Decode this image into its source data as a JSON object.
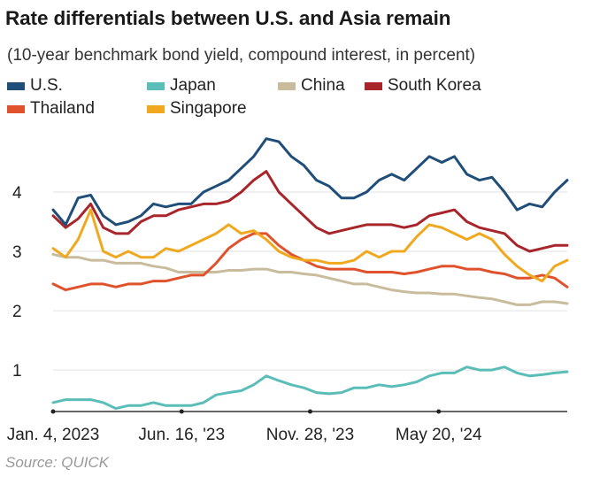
{
  "title": "Rate differentials between U.S. and Asia remain",
  "subtitle": "(10-year benchmark bond yield, compound interest, in percent)",
  "source": "Source: QUICK",
  "colors": {
    "us": "#1f4e79",
    "japan": "#5bbdb8",
    "china": "#c9bc9c",
    "south_korea": "#a8262b",
    "thailand": "#e0522b",
    "singapore": "#f0a81e"
  },
  "chart_data": {
    "type": "line",
    "title": "Rate differentials between U.S. and Asia remain",
    "subtitle": "(10-year benchmark bond yield, compound interest, in percent)",
    "xlabel": "",
    "ylabel": "",
    "x_ticks": [
      "Jan. 4, 2023",
      "Jun. 16, '23",
      "Nov. 28, '23",
      "May 20, '24"
    ],
    "x_tick_positions": [
      0,
      20.5,
      41,
      61.5
    ],
    "x_range": [
      0,
      82
    ],
    "y_ticks": [
      "1",
      "2",
      "3",
      "4"
    ],
    "ylim": [
      0.3,
      5.0
    ],
    "grid": true,
    "legend_position": "top-left",
    "x": [
      0,
      2,
      4,
      6,
      8,
      10,
      12,
      14,
      16,
      18,
      20,
      22,
      24,
      26,
      28,
      30,
      32,
      34,
      36,
      38,
      40,
      42,
      44,
      46,
      48,
      50,
      52,
      54,
      56,
      58,
      60,
      62,
      64,
      66,
      68,
      70,
      72,
      74,
      76,
      78,
      80,
      82
    ],
    "series": [
      {
        "name": "U.S.",
        "values": [
          3.7,
          3.45,
          3.9,
          3.95,
          3.6,
          3.45,
          3.5,
          3.6,
          3.8,
          3.75,
          3.8,
          3.8,
          4.0,
          4.1,
          4.2,
          4.4,
          4.6,
          4.9,
          4.85,
          4.6,
          4.45,
          4.2,
          4.1,
          3.9,
          3.9,
          4.0,
          4.2,
          4.3,
          4.2,
          4.4,
          4.6,
          4.5,
          4.6,
          4.3,
          4.2,
          4.25,
          4.0,
          3.7,
          3.8,
          3.75,
          4.0,
          4.2
        ]
      },
      {
        "name": "Japan",
        "values": [
          0.45,
          0.5,
          0.5,
          0.5,
          0.45,
          0.35,
          0.4,
          0.4,
          0.45,
          0.4,
          0.4,
          0.4,
          0.45,
          0.58,
          0.62,
          0.65,
          0.75,
          0.9,
          0.82,
          0.75,
          0.7,
          0.62,
          0.6,
          0.62,
          0.7,
          0.7,
          0.75,
          0.72,
          0.75,
          0.8,
          0.9,
          0.95,
          0.95,
          1.05,
          1.0,
          1.0,
          1.05,
          0.95,
          0.9,
          0.92,
          0.95,
          0.97
        ]
      },
      {
        "name": "China",
        "values": [
          2.95,
          2.9,
          2.9,
          2.85,
          2.85,
          2.8,
          2.8,
          2.8,
          2.75,
          2.72,
          2.65,
          2.65,
          2.65,
          2.65,
          2.68,
          2.68,
          2.7,
          2.7,
          2.65,
          2.65,
          2.62,
          2.6,
          2.55,
          2.5,
          2.45,
          2.45,
          2.4,
          2.35,
          2.32,
          2.3,
          2.3,
          2.28,
          2.28,
          2.25,
          2.22,
          2.2,
          2.15,
          2.1,
          2.1,
          2.15,
          2.15,
          2.12
        ]
      },
      {
        "name": "South Korea",
        "values": [
          3.6,
          3.4,
          3.55,
          3.8,
          3.4,
          3.3,
          3.3,
          3.5,
          3.6,
          3.6,
          3.7,
          3.75,
          3.8,
          3.8,
          3.85,
          4.0,
          4.2,
          4.35,
          4.0,
          3.8,
          3.6,
          3.4,
          3.3,
          3.35,
          3.4,
          3.45,
          3.45,
          3.45,
          3.4,
          3.45,
          3.6,
          3.65,
          3.7,
          3.5,
          3.4,
          3.35,
          3.3,
          3.1,
          3.0,
          3.05,
          3.1,
          3.1
        ]
      },
      {
        "name": "Thailand",
        "values": [
          2.45,
          2.35,
          2.4,
          2.45,
          2.45,
          2.4,
          2.45,
          2.45,
          2.5,
          2.5,
          2.55,
          2.6,
          2.6,
          2.8,
          3.05,
          3.2,
          3.3,
          3.3,
          3.1,
          2.95,
          2.85,
          2.75,
          2.7,
          2.7,
          2.7,
          2.65,
          2.65,
          2.65,
          2.62,
          2.65,
          2.7,
          2.75,
          2.75,
          2.7,
          2.7,
          2.65,
          2.62,
          2.55,
          2.55,
          2.6,
          2.55,
          2.4
        ]
      },
      {
        "name": "Singapore",
        "values": [
          3.05,
          2.9,
          3.2,
          3.7,
          3.0,
          2.9,
          3.0,
          2.9,
          2.9,
          3.05,
          3.0,
          3.1,
          3.2,
          3.3,
          3.45,
          3.3,
          3.35,
          3.2,
          3.0,
          2.9,
          2.85,
          2.85,
          2.8,
          2.8,
          2.85,
          3.0,
          2.9,
          3.0,
          3.0,
          3.25,
          3.45,
          3.4,
          3.3,
          3.2,
          3.3,
          3.2,
          2.95,
          2.75,
          2.6,
          2.5,
          2.75,
          2.85
        ]
      }
    ]
  },
  "legend": [
    {
      "label": "U.S.",
      "color_key": "us"
    },
    {
      "label": "Japan",
      "color_key": "japan"
    },
    {
      "label": "China",
      "color_key": "china"
    },
    {
      "label": "South Korea",
      "color_key": "south_korea"
    },
    {
      "label": "Thailand",
      "color_key": "thailand"
    },
    {
      "label": "Singapore",
      "color_key": "singapore"
    }
  ]
}
